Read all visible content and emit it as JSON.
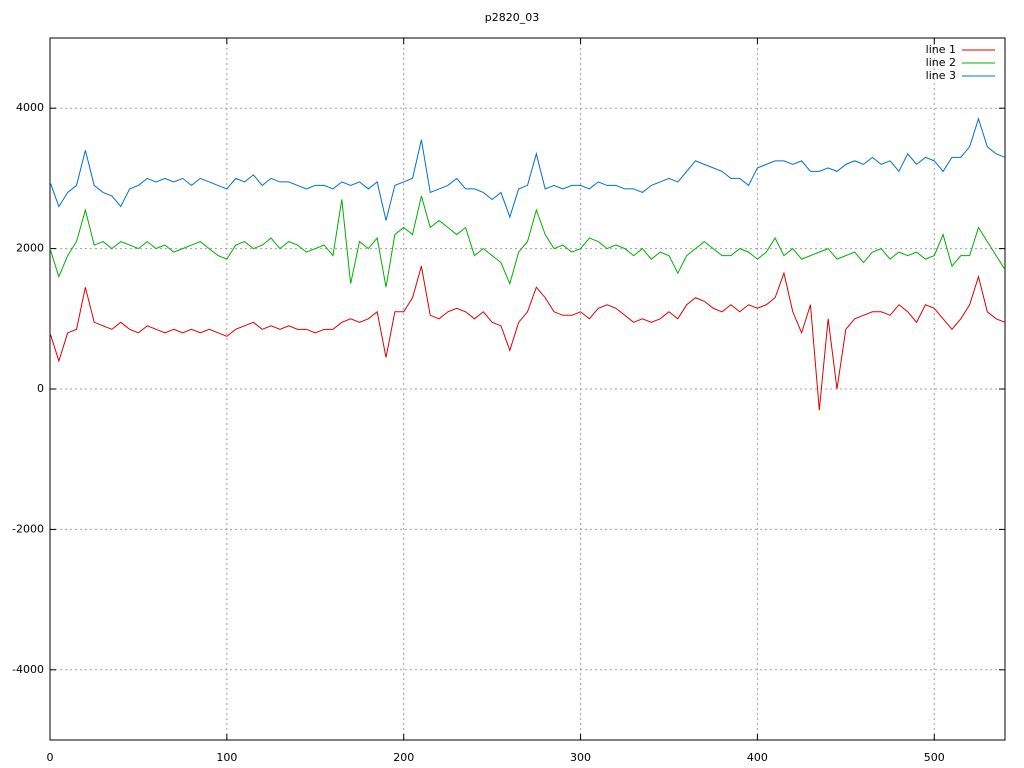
{
  "chart_data": {
    "type": "line",
    "title": "p2820_03",
    "x": [
      0,
      5,
      10,
      15,
      20,
      25,
      30,
      35,
      40,
      45,
      50,
      55,
      60,
      65,
      70,
      75,
      80,
      85,
      90,
      95,
      100,
      105,
      110,
      115,
      120,
      125,
      130,
      135,
      140,
      145,
      150,
      155,
      160,
      165,
      170,
      175,
      180,
      185,
      190,
      195,
      200,
      205,
      210,
      215,
      220,
      225,
      230,
      235,
      240,
      245,
      250,
      255,
      260,
      265,
      270,
      275,
      280,
      285,
      290,
      295,
      300,
      305,
      310,
      315,
      320,
      325,
      330,
      335,
      340,
      345,
      350,
      355,
      360,
      365,
      370,
      375,
      380,
      385,
      390,
      395,
      400,
      405,
      410,
      415,
      420,
      425,
      430,
      435,
      440,
      445,
      450,
      455,
      460,
      465,
      470,
      475,
      480,
      485,
      490,
      495,
      500,
      505,
      510,
      515,
      520,
      525,
      530,
      535,
      540
    ],
    "series": [
      {
        "name": "line 1",
        "color": "#e00000",
        "values": [
          800,
          400,
          800,
          850,
          1450,
          950,
          900,
          850,
          950,
          850,
          800,
          900,
          850,
          800,
          850,
          800,
          850,
          800,
          850,
          800,
          750,
          850,
          900,
          950,
          850,
          900,
          850,
          900,
          850,
          850,
          800,
          850,
          850,
          950,
          1000,
          950,
          1000,
          1100,
          450,
          1100,
          1100,
          1300,
          1750,
          1050,
          1000,
          1100,
          1150,
          1100,
          1000,
          1100,
          950,
          900,
          550,
          950,
          1100,
          1450,
          1300,
          1100,
          1050,
          1050,
          1100,
          1000,
          1150,
          1200,
          1150,
          1050,
          950,
          1000,
          950,
          1000,
          1100,
          1000,
          1200,
          1300,
          1250,
          1150,
          1100,
          1200,
          1100,
          1200,
          1150,
          1200,
          1300,
          1650,
          1100,
          800,
          1200,
          -300,
          1000,
          0,
          850,
          1000,
          1050,
          1100,
          1100,
          1050,
          1200,
          1100,
          950,
          1200,
          1150,
          1000,
          850,
          1000,
          1200,
          1600,
          1100,
          1000,
          950
        ]
      },
      {
        "name": "line 2",
        "color": "#00b000",
        "values": [
          2000,
          1600,
          1900,
          2100,
          2550,
          2050,
          2100,
          2000,
          2100,
          2050,
          2000,
          2100,
          2000,
          2050,
          1950,
          2000,
          2050,
          2100,
          2000,
          1900,
          1850,
          2050,
          2100,
          2000,
          2050,
          2150,
          2000,
          2100,
          2050,
          1950,
          2000,
          2050,
          1900,
          2700,
          1500,
          2100,
          2000,
          2150,
          1450,
          2200,
          2300,
          2200,
          2750,
          2300,
          2400,
          2300,
          2200,
          2300,
          1900,
          2000,
          1900,
          1800,
          1500,
          1950,
          2100,
          2550,
          2200,
          2000,
          2050,
          1950,
          2000,
          2150,
          2100,
          2000,
          2050,
          2000,
          1900,
          2000,
          1850,
          1950,
          1900,
          1650,
          1900,
          2000,
          2100,
          2000,
          1900,
          1900,
          2000,
          1950,
          1850,
          1950,
          2150,
          1900,
          2000,
          1850,
          1900,
          1950,
          2000,
          1850,
          1900,
          1950,
          1800,
          1950,
          2000,
          1850,
          1950,
          1900,
          1950,
          1850,
          1900,
          2200,
          1750,
          1900,
          1900,
          2300,
          2100,
          1900,
          1700
        ]
      },
      {
        "name": "line 3",
        "color": "#0070d0",
        "values": [
          2950,
          2600,
          2800,
          2900,
          3400,
          2900,
          2800,
          2750,
          2600,
          2850,
          2900,
          3000,
          2950,
          3000,
          2950,
          3000,
          2900,
          3000,
          2950,
          2900,
          2850,
          3000,
          2950,
          3050,
          2900,
          3000,
          2950,
          2950,
          2900,
          2850,
          2900,
          2900,
          2850,
          2950,
          2900,
          2950,
          2850,
          2950,
          2400,
          2900,
          2950,
          3000,
          3550,
          2800,
          2850,
          2900,
          3000,
          2850,
          2850,
          2800,
          2700,
          2800,
          2450,
          2850,
          2900,
          3350,
          2850,
          2900,
          2850,
          2900,
          2900,
          2850,
          2950,
          2900,
          2900,
          2850,
          2850,
          2800,
          2900,
          2950,
          3000,
          2950,
          3100,
          3250,
          3200,
          3150,
          3100,
          3000,
          3000,
          2900,
          3150,
          3200,
          3250,
          3250,
          3200,
          3250,
          3100,
          3100,
          3150,
          3100,
          3200,
          3250,
          3200,
          3300,
          3200,
          3250,
          3100,
          3350,
          3200,
          3300,
          3250,
          3100,
          3300,
          3300,
          3450,
          3850,
          3450,
          3350,
          3300
        ]
      }
    ],
    "xlim": [
      0,
      540
    ],
    "ylim": [
      -5000,
      5000
    ],
    "xticks": [
      0,
      100,
      200,
      300,
      400,
      500
    ],
    "yticks": [
      -4000,
      -2000,
      0,
      2000,
      4000
    ],
    "grid": true,
    "legend": "top-right"
  }
}
